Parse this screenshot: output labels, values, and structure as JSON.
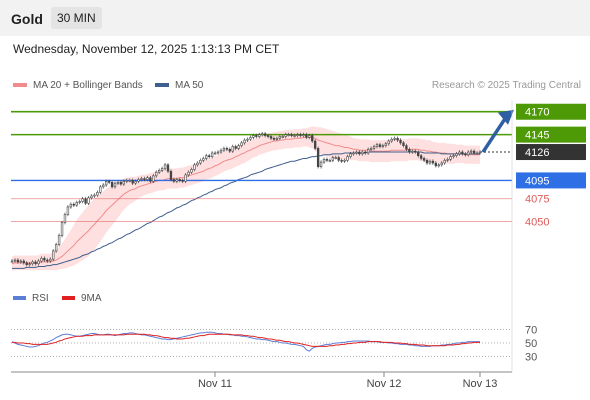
{
  "header": {
    "title": "Gold",
    "timeframe": "30 MIN"
  },
  "datetime": "Wednesday, November 12, 2025 1:13:13 PM CET",
  "legend": {
    "bb_label": "MA 20 + Bollinger Bands",
    "ma50_label": "MA 50",
    "credit": "Research © 2025 Trading Central"
  },
  "rsi_legend": {
    "rsi_label": "RSI",
    "ma_label": "9MA"
  },
  "colors": {
    "green_level": "#4d9a06",
    "blue_level": "#2f6fe6",
    "red_level": "#e05a5a",
    "current": "#333333",
    "arrow": "#2e5fa3",
    "ma20": "#f28b8b",
    "band": "#fdd6d6",
    "ma50": "#3f5f8e",
    "rsi": "#5b7fd6",
    "rsi_ma": "#e02020",
    "candle": "#444444"
  },
  "chart_data": [
    {
      "type": "line",
      "title": "Gold",
      "x_ticks": [
        "Nov 11",
        "Nov 12",
        "Nov 13"
      ],
      "levels": [
        {
          "value": 4170,
          "label": "4170",
          "style": "green_box"
        },
        {
          "value": 4145,
          "label": "4145",
          "style": "green_box"
        },
        {
          "value": 4126,
          "label": "4126",
          "style": "current"
        },
        {
          "value": 4095,
          "label": "4095",
          "style": "blue_box"
        },
        {
          "value": 4075,
          "label": "4075",
          "style": "red_text"
        },
        {
          "value": 4050,
          "label": "4050",
          "style": "red_text"
        }
      ],
      "ylim": [
        3995,
        4185
      ],
      "close": [
        4007,
        4008,
        4006,
        4007,
        4005,
        4003,
        4004,
        4006,
        4004,
        4007,
        4010,
        4008,
        4007,
        4009,
        4018,
        4025,
        4035,
        4049,
        4058,
        4066,
        4069,
        4068,
        4071,
        4072,
        4075,
        4070,
        4076,
        4078,
        4079,
        4082,
        4088,
        4090,
        4094,
        4093,
        4088,
        4092,
        4093,
        4091,
        4094,
        4095,
        4095,
        4092,
        4094,
        4096,
        4097,
        4096,
        4098,
        4094,
        4100,
        4104,
        4106,
        4108,
        4112,
        4105,
        4096,
        4094,
        4096,
        4095,
        4094,
        4101,
        4104,
        4107,
        4112,
        4114,
        4117,
        4119,
        4122,
        4121,
        4125,
        4125,
        4126,
        4128,
        4130,
        4129,
        4127,
        4132,
        4130,
        4133,
        4136,
        4139,
        4140,
        4142,
        4144,
        4143,
        4145,
        4146,
        4144,
        4143,
        4141,
        4140,
        4141,
        4143,
        4143,
        4145,
        4145,
        4144,
        4144,
        4145,
        4144,
        4145,
        4142,
        4144,
        4138,
        4130,
        4110,
        4115,
        4118,
        4117,
        4117,
        4120,
        4120,
        4117,
        4116,
        4117,
        4121,
        4124,
        4125,
        4126,
        4124,
        4126,
        4125,
        4129,
        4130,
        4132,
        4134,
        4132,
        4133,
        4135,
        4138,
        4140,
        4141,
        4139,
        4136,
        4133,
        4129,
        4126,
        4127,
        4126,
        4122,
        4119,
        4117,
        4114,
        4116,
        4114,
        4111,
        4112,
        4114,
        4117,
        4118,
        4121,
        4122,
        4124,
        4126,
        4124,
        4123,
        4126,
        4127,
        4125,
        4125,
        4126
      ],
      "ma20": [
        4004,
        4005,
        4005,
        4005,
        4005,
        4005,
        4005,
        4005,
        4005,
        4005,
        4006,
        4006,
        4006,
        4006,
        4007,
        4008,
        4010,
        4012,
        4015,
        4018,
        4021,
        4024,
        4028,
        4031,
        4034,
        4037,
        4040,
        4044,
        4047,
        4051,
        4054,
        4058,
        4062,
        4065,
        4068,
        4071,
        4074,
        4077,
        4080,
        4082,
        4084,
        4085,
        4086,
        4088,
        4089,
        4090,
        4091,
        4092,
        4093,
        4094,
        4095,
        4095,
        4096,
        4097,
        4097,
        4097,
        4097,
        4098,
        4098,
        4099,
        4100,
        4101,
        4102,
        4103,
        4104,
        4105,
        4107,
        4108,
        4109,
        4111,
        4112,
        4114,
        4116,
        4117,
        4118,
        4119,
        4121,
        4122,
        4124,
        4125,
        4127,
        4128,
        4130,
        4131,
        4133,
        4134,
        4135,
        4136,
        4137,
        4138,
        4138,
        4139,
        4139,
        4140,
        4140,
        4140,
        4141,
        4141,
        4141,
        4142,
        4142,
        4142,
        4142,
        4141,
        4139,
        4138,
        4137,
        4136,
        4135,
        4134,
        4133,
        4133,
        4132,
        4131,
        4131,
        4130,
        4129,
        4129,
        4128,
        4128,
        4128,
        4128,
        4127,
        4127,
        4127,
        4127,
        4127,
        4127,
        4127,
        4128,
        4128,
        4128,
        4128,
        4128,
        4128,
        4129,
        4129,
        4129,
        4129,
        4128,
        4128,
        4127,
        4127,
        4126,
        4126,
        4125,
        4125,
        4125,
        4124,
        4124,
        4124,
        4124,
        4124,
        4124,
        4123,
        4123,
        4123,
        4123,
        4123,
        4123
      ],
      "ma50": [
        3999,
        3999,
        3999,
        3999,
        3999,
        4000,
        4000,
        4000,
        4000,
        4001,
        4001,
        4001,
        4002,
        4002,
        4003,
        4003,
        4004,
        4005,
        4006,
        4007,
        4008,
        4009,
        4010,
        4011,
        4013,
        4014,
        4015,
        4017,
        4018,
        4020,
        4021,
        4023,
        4024,
        4026,
        4027,
        4029,
        4031,
        4032,
        4034,
        4036,
        4037,
        4039,
        4041,
        4042,
        4044,
        4046,
        4048,
        4049,
        4051,
        4053,
        4055,
        4056,
        4058,
        4060,
        4061,
        4063,
        4065,
        4066,
        4068,
        4069,
        4071,
        4073,
        4074,
        4076,
        4077,
        4079,
        4080,
        4082,
        4083,
        4085,
        4086,
        4087,
        4089,
        4090,
        4092,
        4093,
        4094,
        4096,
        4097,
        4098,
        4099,
        4101,
        4102,
        4103,
        4104,
        4105,
        4107,
        4108,
        4109,
        4110,
        4111,
        4112,
        4113,
        4114,
        4115,
        4116,
        4116,
        4117,
        4118,
        4119,
        4119,
        4120,
        4121,
        4121,
        4122,
        4122,
        4123,
        4123,
        4123,
        4124,
        4124,
        4124,
        4124,
        4125,
        4125,
        4125,
        4125,
        4125,
        4125,
        4125,
        4125,
        4126,
        4126,
        4126,
        4126,
        4126,
        4126,
        4126,
        4126,
        4126,
        4126,
        4126,
        4126,
        4126,
        4126,
        4126,
        4126,
        4126,
        4126,
        4126,
        4125,
        4125,
        4125,
        4125,
        4125,
        4125,
        4124,
        4124,
        4124,
        4124,
        4124,
        4124,
        4124,
        4124,
        4124,
        4124,
        4124,
        4124,
        4124,
        4124
      ],
      "band_width": [
        8,
        8,
        8,
        8,
        8,
        8,
        8,
        8,
        8,
        8,
        9,
        9,
        9,
        9,
        10,
        11,
        12,
        14,
        16,
        18,
        20,
        22,
        24,
        25,
        26,
        27,
        28,
        28,
        28,
        27,
        26,
        25,
        24,
        23,
        22,
        21,
        20,
        18,
        17,
        16,
        15,
        14,
        13,
        12,
        12,
        11,
        11,
        11,
        11,
        11,
        11,
        11,
        11,
        11,
        11,
        11,
        11,
        11,
        11,
        11,
        11,
        11,
        11,
        11,
        11,
        11,
        11,
        11,
        11,
        11,
        11,
        11,
        11,
        11,
        11,
        11,
        11,
        11,
        11,
        11,
        11,
        10,
        10,
        10,
        10,
        10,
        10,
        10,
        10,
        10,
        10,
        10,
        10,
        10,
        10,
        10,
        10,
        10,
        10,
        10,
        10,
        11,
        12,
        13,
        14,
        15,
        15,
        15,
        15,
        15,
        15,
        14,
        14,
        14,
        13,
        13,
        12,
        12,
        12,
        12,
        12,
        12,
        12,
        12,
        12,
        12,
        12,
        12,
        12,
        12,
        12,
        12,
        12,
        12,
        12,
        12,
        12,
        12,
        12,
        12,
        12,
        12,
        12,
        11,
        11,
        11,
        11,
        11,
        11,
        11,
        11,
        10,
        10,
        10,
        10,
        10,
        10,
        10,
        10,
        10
      ]
    },
    {
      "type": "line",
      "title": "RSI",
      "y_ticks": [
        70,
        50,
        30
      ],
      "ylim": [
        10,
        90
      ],
      "series": [
        {
          "name": "RSI",
          "values": [
            52,
            50,
            48,
            47,
            46,
            45,
            44,
            44,
            45,
            46,
            48,
            50,
            51,
            53,
            55,
            58,
            60,
            62,
            63,
            63,
            62,
            61,
            60,
            60,
            61,
            62,
            63,
            64,
            64,
            63,
            62,
            62,
            63,
            63,
            62,
            61,
            62,
            63,
            64,
            64,
            65,
            65,
            64,
            63,
            62,
            62,
            61,
            60,
            59,
            58,
            57,
            56,
            56,
            55,
            55,
            56,
            57,
            58,
            59,
            60,
            61,
            62,
            63,
            64,
            65,
            65,
            66,
            66,
            66,
            65,
            64,
            64,
            63,
            63,
            62,
            62,
            61,
            61,
            60,
            60,
            59,
            58,
            57,
            56,
            56,
            55,
            55,
            54,
            53,
            52,
            52,
            51,
            50,
            50,
            49,
            48,
            48,
            47,
            46,
            45,
            40,
            38,
            42,
            44,
            45,
            46,
            47,
            48,
            48,
            49,
            50,
            50,
            51,
            51,
            52,
            52,
            53,
            53,
            53,
            53,
            53,
            53,
            52,
            52,
            52,
            51,
            51,
            51,
            50,
            50,
            49,
            49,
            48,
            48,
            48,
            47,
            47,
            46,
            46,
            45,
            45,
            45,
            45,
            46,
            46,
            46,
            47,
            47,
            48,
            48,
            49,
            50,
            50,
            51,
            51,
            52,
            52,
            52,
            52,
            52
          ]
        },
        {
          "name": "9MA",
          "values": [
            51,
            51,
            50,
            50,
            50,
            49,
            49,
            48,
            48,
            48,
            48,
            48,
            48,
            49,
            50,
            51,
            53,
            54,
            56,
            57,
            58,
            59,
            60,
            60,
            60,
            61,
            61,
            61,
            62,
            62,
            62,
            62,
            62,
            62,
            62,
            62,
            62,
            62,
            62,
            63,
            63,
            63,
            63,
            63,
            63,
            63,
            62,
            62,
            61,
            61,
            60,
            59,
            58,
            58,
            57,
            57,
            56,
            56,
            56,
            57,
            57,
            58,
            59,
            60,
            61,
            61,
            62,
            63,
            63,
            63,
            63,
            63,
            63,
            63,
            63,
            62,
            62,
            62,
            62,
            61,
            61,
            60,
            60,
            59,
            58,
            58,
            57,
            56,
            56,
            55,
            54,
            54,
            53,
            52,
            52,
            51,
            50,
            50,
            49,
            48,
            47,
            46,
            45,
            45,
            45,
            45,
            45,
            45,
            46,
            46,
            47,
            47,
            48,
            48,
            49,
            49,
            50,
            50,
            51,
            51,
            51,
            52,
            52,
            52,
            52,
            52,
            51,
            51,
            51,
            51,
            50,
            50,
            50,
            49,
            49,
            48,
            48,
            48,
            47,
            47,
            47,
            46,
            46,
            46,
            46,
            46,
            46,
            46,
            47,
            47,
            47,
            48,
            48,
            49,
            49,
            50,
            50,
            51,
            51,
            51
          ]
        }
      ]
    }
  ]
}
